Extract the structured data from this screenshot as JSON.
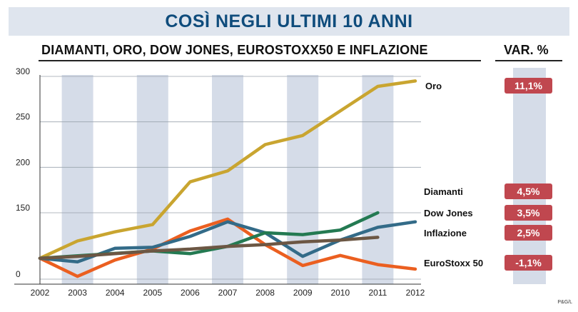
{
  "title": "COSÌ NEGLI ULTIMI 10 ANNI",
  "subtitle": "DIAMANTI, ORO, DOW JONES, EUROSTOXX50 E INFLAZIONE",
  "var_header": "VAR. %",
  "credit": "P&G/L",
  "colors": {
    "background": "#ffffff",
    "title_bar": "#dfe5ee",
    "title_text": "#0f4c7c",
    "stripe": "#d5dce8",
    "badge": "#c0474f"
  },
  "chart_data": {
    "type": "line",
    "title": "COSÌ NEGLI ULTIMI 10 ANNI",
    "subtitle": "DIAMANTI, ORO, DOW JONES, EUROSTOXX50 E INFLAZIONE",
    "xlabel": "",
    "ylabel": "",
    "x": [
      2002,
      2003,
      2004,
      2005,
      2006,
      2007,
      2008,
      2009,
      2010,
      2011,
      2012
    ],
    "x_tick_labels": [
      "2002",
      "2003",
      "2004",
      "2005",
      "2006",
      "2007",
      "2008",
      "2009",
      "2010",
      "2011",
      "2012"
    ],
    "y_ticks": [
      0,
      150,
      200,
      250,
      300
    ],
    "y_tick_labels": [
      "0",
      "150",
      "200",
      "250",
      "300"
    ],
    "ylim": [
      0,
      300
    ],
    "grid": false,
    "legend": "right",
    "series": [
      {
        "name": "Oro",
        "color": "#c9a530",
        "change": "11,1%",
        "values": [
          100,
          119,
          129,
          137,
          184,
          196,
          225,
          235,
          262,
          289,
          295
        ]
      },
      {
        "name": "Diamanti",
        "color": "#247a52",
        "change": "4,5%",
        "values": [
          100,
          null,
          null,
          108,
          105,
          113,
          128,
          126,
          131,
          150,
          null
        ]
      },
      {
        "name": "Dow Jones",
        "color": "#336b88",
        "change": "3,5%",
        "values": [
          100,
          96,
          111,
          112,
          124,
          140,
          128,
          102,
          120,
          134,
          140
        ]
      },
      {
        "name": "Inflazione",
        "color": "#6c5744",
        "change": "2,5%",
        "values": [
          100,
          102,
          105,
          108,
          110,
          113,
          115,
          118,
          120,
          123,
          null
        ]
      },
      {
        "name": "EuroStoxx 50",
        "color": "#eb5f20",
        "change": "-1,1%",
        "values": [
          100,
          80,
          98,
          110,
          130,
          143,
          115,
          92,
          103,
          93,
          88
        ]
      }
    ]
  }
}
